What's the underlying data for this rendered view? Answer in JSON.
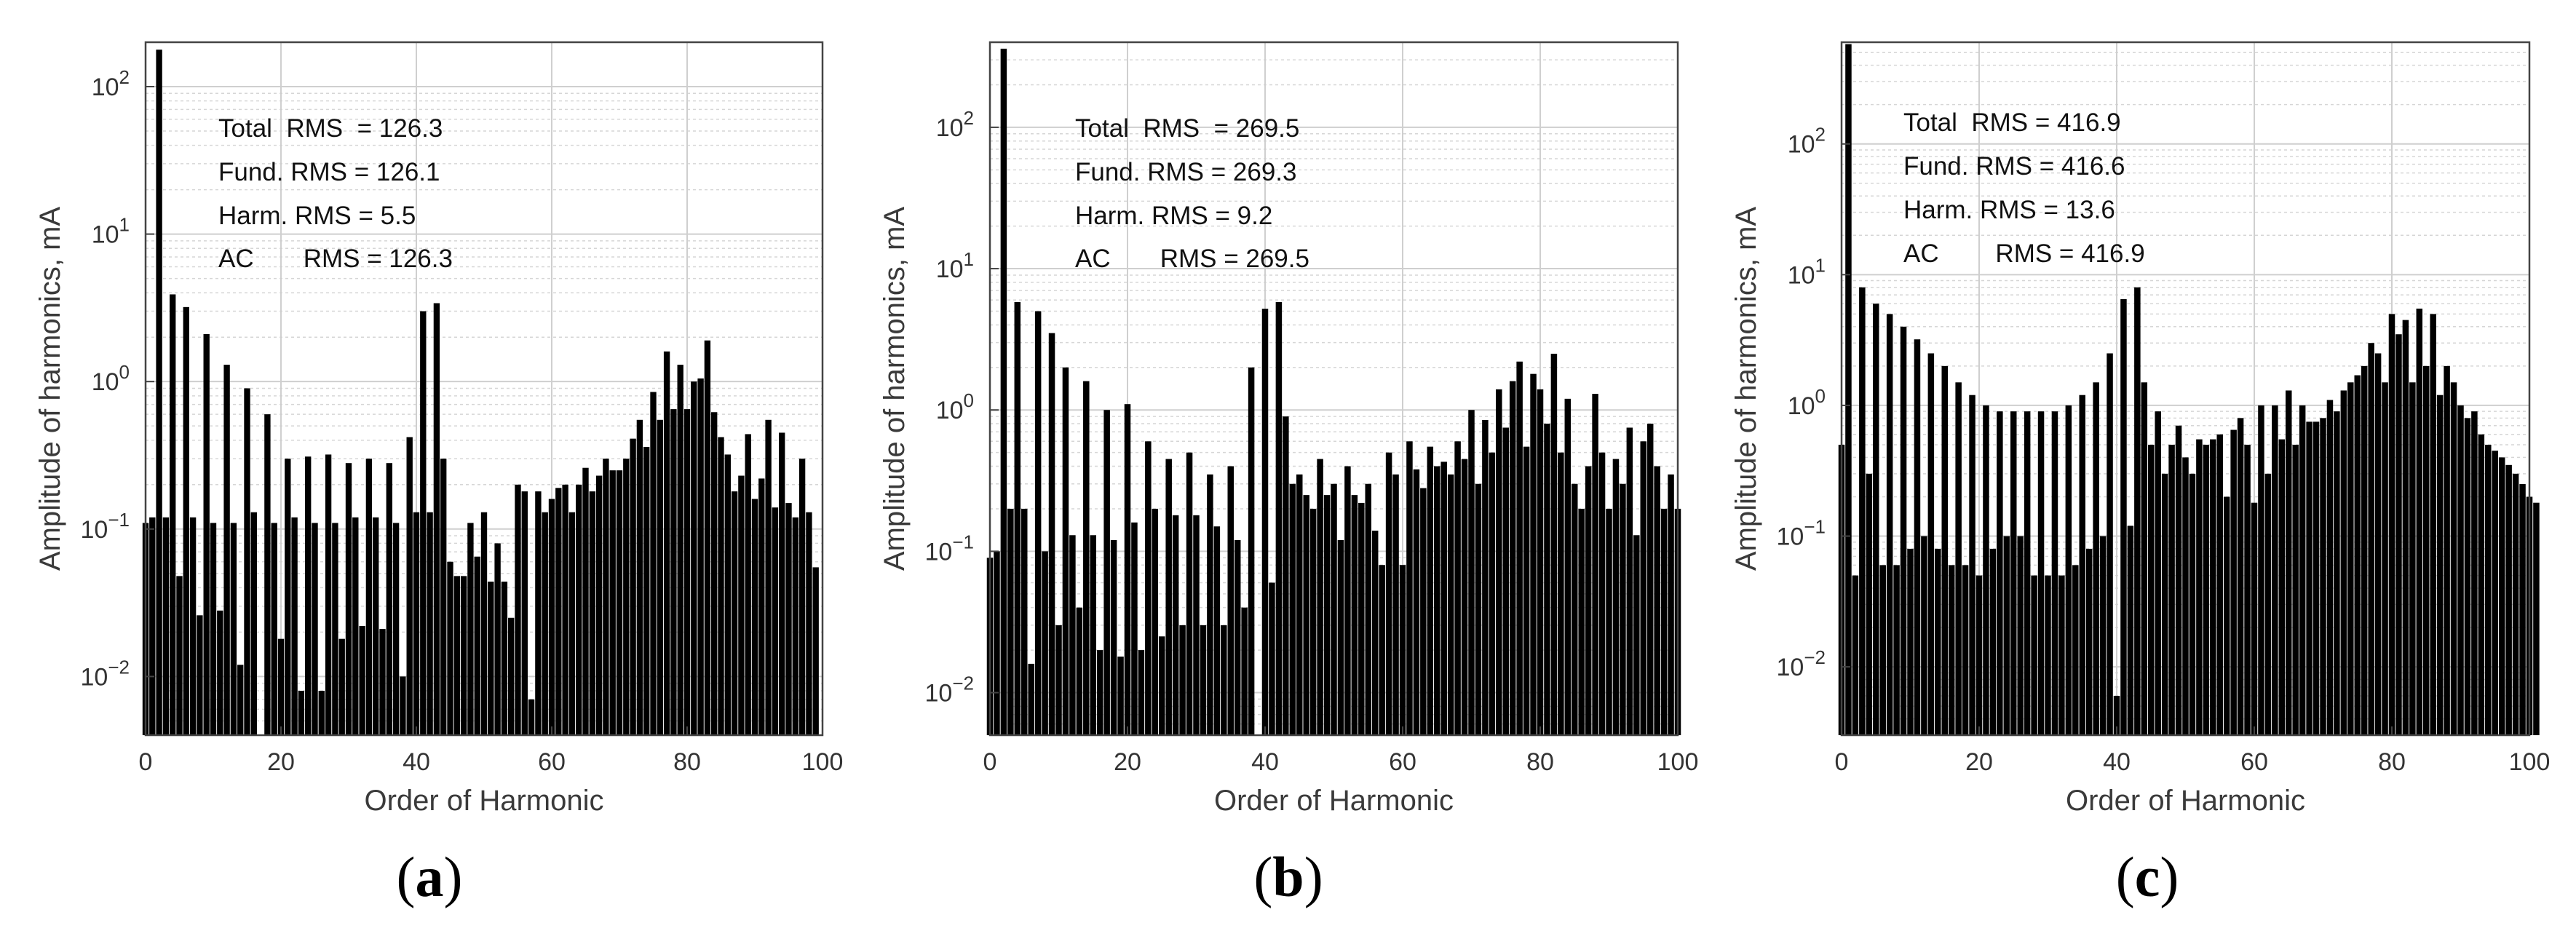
{
  "figure": {
    "panels": [
      {
        "label": "a",
        "annotations": [
          "Total  RMS  = 126.3",
          "Fund. RMS = 126.1",
          "Harm. RMS = 5.5",
          "AC       RMS = 126.3"
        ]
      },
      {
        "label": "b",
        "annotations": [
          "Total  RMS  = 269.5",
          "Fund. RMS = 269.3",
          "Harm. RMS = 9.2",
          "AC       RMS = 269.5"
        ]
      },
      {
        "label": "c",
        "annotations": [
          "Total  RMS = 416.9",
          "Fund. RMS = 416.6",
          "Harm. RMS = 13.6",
          "AC        RMS = 416.9"
        ]
      }
    ]
  },
  "chart_data": [
    {
      "type": "bar",
      "xlabel": "Order of Harmonic",
      "ylabel": "Amplitude of harmonics, mA",
      "xlim": [
        0,
        100
      ],
      "ylim": [
        0.004,
        200
      ],
      "yscale": "log",
      "grid": true,
      "x_ticks": [
        0,
        20,
        40,
        60,
        80,
        100
      ],
      "y_ticks": [
        "10^-2",
        "10^-1",
        "10^0",
        "10^1",
        "10^2"
      ],
      "series": [
        {
          "x_start": 0,
          "values": [
            0.11,
            0.12,
            178,
            0.12,
            3.9,
            0.048,
            3.2,
            0.12,
            0.026,
            2.1,
            0.11,
            0.028,
            1.3,
            0.11,
            0.012,
            0.9,
            0.13,
            0.004,
            0.6,
            0.11,
            0.018,
            0.3,
            0.12,
            0.008,
            0.31,
            0.11,
            0.008,
            0.32,
            0.11,
            0.018,
            0.28,
            0.12,
            0.022,
            0.3,
            0.12,
            0.021,
            0.28,
            0.11,
            0.01,
            0.42,
            0.13,
            3.0,
            0.13,
            3.4,
            0.3,
            0.06,
            0.048,
            0.048,
            0.11,
            0.065,
            0.13,
            0.044,
            0.08,
            0.044,
            0.025,
            0.2,
            0.18,
            0.007,
            0.18,
            0.13,
            0.16,
            0.19,
            0.2,
            0.13,
            0.2,
            0.26,
            0.18,
            0.23,
            0.3,
            0.25,
            0.25,
            0.3,
            0.41,
            0.55,
            0.36,
            0.85,
            0.55,
            1.6,
            0.65,
            1.3,
            0.65,
            1.0,
            1.05,
            1.9,
            0.62,
            0.42,
            0.32,
            0.18,
            0.23,
            0.44,
            0.16,
            0.22,
            0.55,
            0.14,
            0.45,
            0.15,
            0.12,
            0.3,
            0.13,
            0.055
          ]
        }
      ]
    },
    {
      "type": "bar",
      "xlabel": "Order of Harmonic",
      "ylabel": "Amplitude of harmonics, mA",
      "xlim": [
        0,
        100
      ],
      "ylim": [
        0.005,
        400
      ],
      "yscale": "log",
      "grid": true,
      "x_ticks": [
        0,
        20,
        40,
        60,
        80,
        100
      ],
      "y_ticks": [
        "10^-2",
        "10^-1",
        "10^0",
        "10^1",
        "10^2"
      ],
      "series": [
        {
          "x_start": 0,
          "values": [
            0.09,
            0.1,
            360,
            0.2,
            5.8,
            0.2,
            0.016,
            5.0,
            0.1,
            3.5,
            0.03,
            2.0,
            0.13,
            0.04,
            1.6,
            0.13,
            0.02,
            1.0,
            0.12,
            0.018,
            1.1,
            0.16,
            0.02,
            0.6,
            0.2,
            0.025,
            0.45,
            0.18,
            0.03,
            0.5,
            0.18,
            0.03,
            0.35,
            0.15,
            0.03,
            0.4,
            0.12,
            0.04,
            2.0,
            0.005,
            5.2,
            0.06,
            5.8,
            0.9,
            0.3,
            0.35,
            0.25,
            0.2,
            0.45,
            0.25,
            0.3,
            0.12,
            0.4,
            0.25,
            0.22,
            0.3,
            0.14,
            0.08,
            0.5,
            0.35,
            0.08,
            0.6,
            0.38,
            0.28,
            0.55,
            0.4,
            0.43,
            0.35,
            0.6,
            0.45,
            1.0,
            0.3,
            0.85,
            0.5,
            1.4,
            0.75,
            1.6,
            2.2,
            0.55,
            1.8,
            1.4,
            0.8,
            2.5,
            0.5,
            1.2,
            0.3,
            0.2,
            0.4,
            1.3,
            0.5,
            0.2,
            0.45,
            0.3,
            0.75,
            0.13,
            0.6,
            0.8,
            0.4,
            0.2,
            0.35,
            0.2
          ]
        }
      ]
    },
    {
      "type": "bar",
      "xlabel": "Order of Harmonic",
      "ylabel": "Amplitude of harmonics, mA",
      "xlim": [
        0,
        100
      ],
      "ylim": [
        0.003,
        600
      ],
      "yscale": "log",
      "grid": true,
      "x_ticks": [
        0,
        20,
        40,
        60,
        80,
        100
      ],
      "y_ticks": [
        "10^-2",
        "10^-1",
        "10^0",
        "10^1",
        "10^2"
      ],
      "series": [
        {
          "x_start": 0,
          "values": [
            0.5,
            580,
            0.05,
            8.0,
            0.3,
            6.0,
            0.06,
            5.0,
            0.06,
            4.0,
            0.08,
            3.2,
            0.1,
            2.5,
            0.08,
            2.0,
            0.06,
            1.5,
            0.06,
            1.2,
            0.05,
            1.0,
            0.08,
            0.9,
            0.1,
            0.9,
            0.1,
            0.9,
            0.05,
            0.9,
            0.05,
            0.9,
            0.05,
            1.0,
            0.06,
            1.2,
            0.08,
            1.5,
            0.1,
            2.5,
            0.006,
            6.5,
            0.12,
            8.0,
            1.5,
            0.5,
            0.9,
            0.3,
            0.5,
            0.7,
            0.4,
            0.3,
            0.55,
            0.5,
            0.55,
            0.6,
            0.2,
            0.65,
            0.8,
            0.5,
            0.18,
            1.0,
            0.3,
            1.0,
            0.55,
            1.3,
            0.5,
            1.0,
            0.75,
            0.75,
            0.8,
            1.1,
            0.9,
            1.3,
            1.5,
            1.7,
            2.0,
            3.0,
            2.5,
            1.5,
            5.0,
            3.5,
            4.5,
            1.5,
            5.5,
            2.0,
            5.0,
            1.2,
            2.0,
            1.5,
            1.0,
            0.8,
            0.9,
            0.6,
            0.5,
            0.45,
            0.4,
            0.35,
            0.3,
            0.25,
            0.2,
            0.18
          ]
        }
      ]
    }
  ]
}
